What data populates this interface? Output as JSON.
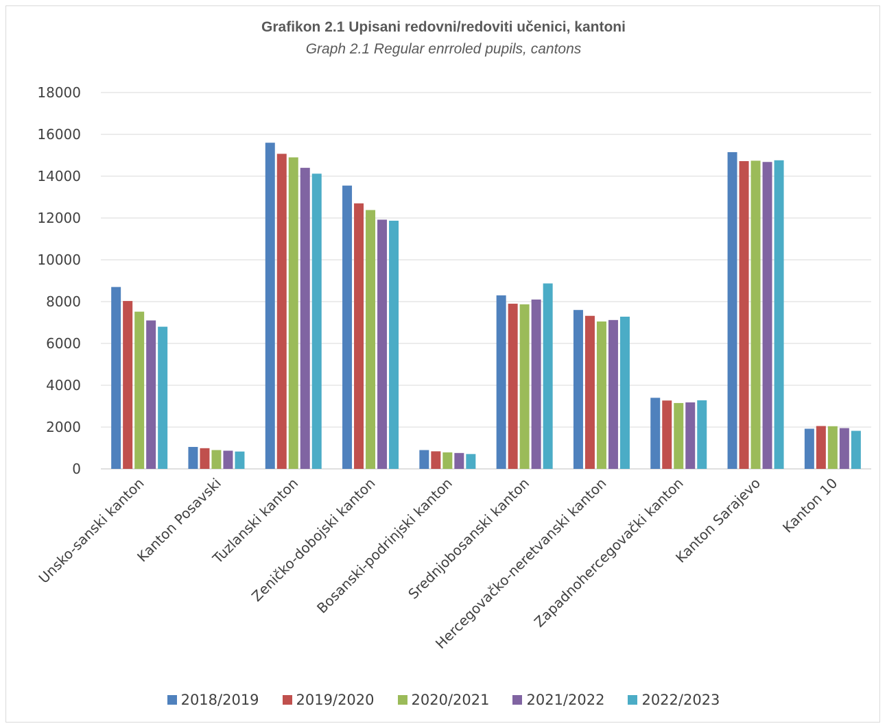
{
  "chart_data": {
    "type": "bar",
    "title": "Grafikon 2.1 Upisani redovni/redoviti učenici, kantoni",
    "subtitle": "Graph 2.1 Regular enrroled pupils, cantons",
    "xlabel": "",
    "ylabel": "",
    "ylim": [
      0,
      18000
    ],
    "yticks": [
      "0",
      "2000",
      "4000",
      "6000",
      "8000",
      "10000",
      "12000",
      "14000",
      "16000",
      "18000"
    ],
    "grid": true,
    "legend_position": "bottom",
    "categories": [
      "Unsko-sanski kanton",
      "Kanton Posavski",
      "Tuzlanski kanton",
      "Zeničko-dobojski kanton",
      "Bosanski-podrinjski kanton",
      "Srednjobosanski kanton",
      "Hercegovačko-neretvanski kanton",
      "Zapadnohercegovački kanton",
      "Kanton Sarajevo",
      "Kanton 10"
    ],
    "series": [
      {
        "name": "2018/2019",
        "color": "#4f81bd",
        "values": [
          8700,
          1050,
          15600,
          13550,
          900,
          8300,
          7600,
          3400,
          15150,
          1920
        ]
      },
      {
        "name": "2019/2020",
        "color": "#c0504d",
        "values": [
          8030,
          990,
          15070,
          12700,
          840,
          7900,
          7320,
          3270,
          14720,
          2050
        ]
      },
      {
        "name": "2020/2021",
        "color": "#9bbb59",
        "values": [
          7520,
          900,
          14900,
          12380,
          790,
          7870,
          7050,
          3150,
          14740,
          2040
        ]
      },
      {
        "name": "2021/2022",
        "color": "#8064a2",
        "values": [
          7100,
          870,
          14400,
          11920,
          760,
          8100,
          7120,
          3180,
          14680,
          1950
        ]
      },
      {
        "name": "2022/2023",
        "color": "#4bacc6",
        "values": [
          6800,
          830,
          14120,
          11870,
          710,
          8870,
          7280,
          3280,
          14760,
          1820
        ]
      }
    ]
  }
}
